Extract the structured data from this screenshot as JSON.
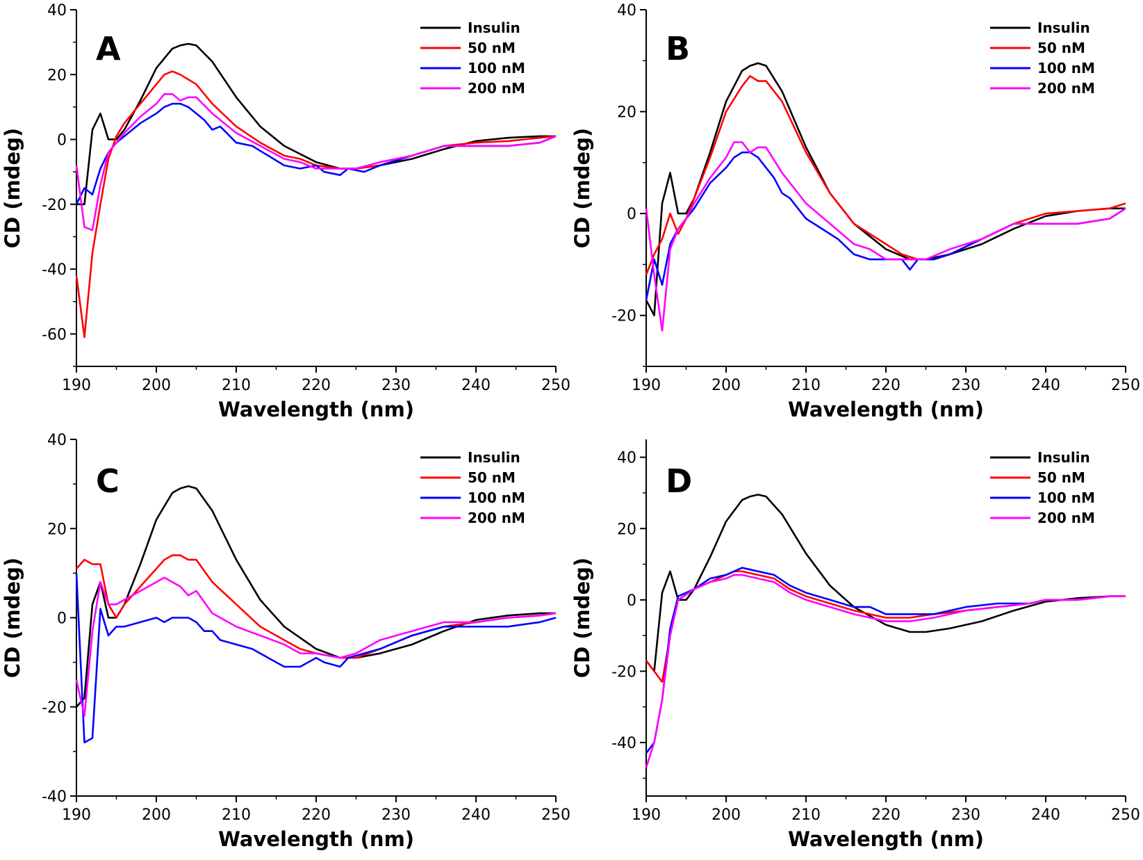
{
  "colors": {
    "Insulin": "#000000",
    "50 nM": "#ff0000",
    "100 nM": "#0000ff",
    "200 nM": "#ff00ff"
  },
  "chart_data": [
    {
      "panel": "A",
      "type": "line",
      "xlabel": "Wavelength (nm)",
      "ylabel": "CD (mdeg)",
      "xlim": [
        190,
        250
      ],
      "ylim": [
        -70,
        40
      ],
      "xticks": [
        190,
        200,
        210,
        220,
        230,
        240,
        250
      ],
      "yticks": [
        -60,
        -40,
        -20,
        0,
        20,
        40
      ],
      "legend_position": "top-right",
      "series": [
        {
          "name": "Insulin",
          "x": [
            190,
            191,
            192,
            193,
            194,
            195,
            196,
            198,
            200,
            202,
            203,
            204,
            205,
            207,
            210,
            213,
            216,
            220,
            223,
            225,
            228,
            232,
            236,
            240,
            244,
            248,
            250
          ],
          "y": [
            -20,
            -20,
            3,
            8,
            0,
            0,
            3,
            12,
            22,
            28,
            29,
            29.5,
            29,
            24,
            13,
            4,
            -2,
            -7,
            -9,
            -9,
            -8,
            -6,
            -3,
            -0.5,
            0.5,
            1,
            1
          ]
        },
        {
          "name": "50 nM",
          "x": [
            190,
            191,
            192,
            193,
            194,
            195,
            196,
            197,
            198,
            200,
            201,
            202,
            203,
            205,
            207,
            210,
            213,
            216,
            218,
            220,
            223,
            225,
            228,
            232,
            236,
            240,
            244,
            248,
            250
          ],
          "y": [
            -42,
            -61,
            -35,
            -20,
            -6,
            1,
            5,
            8,
            11,
            17,
            20,
            21,
            20,
            17,
            11,
            4,
            -1,
            -5,
            -6,
            -8,
            -9,
            -9,
            -8,
            -5,
            -2,
            -1,
            -0.5,
            0.5,
            1
          ]
        },
        {
          "name": "100 nM",
          "x": [
            190,
            191,
            192,
            193,
            194,
            195,
            196,
            198,
            200,
            201,
            202,
            203,
            204,
            205,
            206,
            207,
            208,
            210,
            212,
            214,
            216,
            218,
            220,
            221,
            223,
            224,
            226,
            228,
            232,
            236,
            240,
            244,
            248,
            250
          ],
          "y": [
            -20,
            -15,
            -17,
            -9,
            -4,
            -1,
            1,
            5,
            8,
            10,
            11,
            11,
            10,
            8,
            6,
            3,
            4,
            -1,
            -2,
            -5,
            -8,
            -9,
            -8,
            -10,
            -11,
            -9,
            -10,
            -8,
            -5,
            -2,
            -2,
            -2,
            -1,
            1
          ]
        },
        {
          "name": "200 nM",
          "x": [
            190,
            191,
            192,
            193,
            194,
            195,
            196,
            198,
            200,
            201,
            202,
            203,
            204,
            205,
            207,
            210,
            213,
            216,
            218,
            220,
            223,
            225,
            228,
            232,
            236,
            240,
            244,
            248,
            250
          ],
          "y": [
            -8,
            -27,
            -28,
            -14,
            -4,
            -1,
            2,
            7,
            11,
            14,
            14,
            12,
            13,
            13,
            8,
            2,
            -2,
            -6,
            -7,
            -9,
            -9,
            -9,
            -7,
            -5,
            -2,
            -2,
            -2,
            -1,
            1
          ]
        }
      ]
    },
    {
      "panel": "B",
      "type": "line",
      "xlabel": "Wavelength (nm)",
      "ylabel": "CD (mdeg)",
      "xlim": [
        190,
        250
      ],
      "ylim": [
        -30,
        40
      ],
      "xticks": [
        190,
        200,
        210,
        220,
        230,
        240,
        250
      ],
      "yticks": [
        -20,
        0,
        20,
        40
      ],
      "legend_position": "top-right",
      "series": [
        {
          "name": "Insulin",
          "x": [
            190,
            191,
            192,
            193,
            194,
            195,
            196,
            198,
            200,
            202,
            203,
            204,
            205,
            207,
            210,
            213,
            216,
            220,
            223,
            225,
            228,
            232,
            236,
            240,
            244,
            248,
            250
          ],
          "y": [
            -17,
            -20,
            2,
            8,
            0,
            0,
            3,
            12,
            22,
            28,
            29,
            29.5,
            29,
            24,
            13,
            4,
            -2,
            -7,
            -9,
            -9,
            -8,
            -6,
            -3,
            -0.5,
            0.5,
            1,
            1
          ]
        },
        {
          "name": "50 nM",
          "x": [
            190,
            191,
            192,
            193,
            194,
            195,
            196,
            198,
            200,
            202,
            203,
            204,
            205,
            207,
            210,
            213,
            216,
            218,
            220,
            222,
            224,
            226,
            228,
            232,
            236,
            240,
            244,
            248,
            250
          ],
          "y": [
            -12,
            -8,
            -5,
            0,
            -4,
            -1,
            3,
            11,
            20,
            25,
            27,
            26,
            26,
            22,
            12,
            4,
            -2,
            -4,
            -6,
            -8,
            -9,
            -9,
            -8,
            -5,
            -2,
            0,
            0.5,
            1,
            2
          ]
        },
        {
          "name": "100 nM",
          "x": [
            190,
            191,
            192,
            193,
            194,
            195,
            196,
            198,
            200,
            201,
            202,
            203,
            204,
            205,
            206,
            207,
            208,
            210,
            212,
            214,
            216,
            218,
            220,
            222,
            223,
            224,
            226,
            228,
            232,
            236,
            240,
            244,
            248,
            250
          ],
          "y": [
            -17,
            -9,
            -14,
            -6,
            -3,
            -1,
            1,
            6,
            9,
            11,
            12,
            12,
            11,
            9,
            7,
            4,
            3,
            -1,
            -3,
            -5,
            -8,
            -9,
            -9,
            -9,
            -11,
            -9,
            -9,
            -8,
            -5,
            -2,
            -2,
            -2,
            -1,
            1
          ]
        },
        {
          "name": "200 nM",
          "x": [
            190,
            191,
            192,
            193,
            194,
            195,
            196,
            198,
            200,
            201,
            202,
            203,
            204,
            205,
            207,
            210,
            213,
            216,
            218,
            220,
            223,
            225,
            228,
            232,
            236,
            240,
            244,
            248,
            250
          ],
          "y": [
            1,
            -12,
            -23,
            -7,
            -3,
            -1,
            2,
            7,
            11,
            14,
            14,
            12,
            13,
            13,
            8,
            2,
            -2,
            -6,
            -7,
            -9,
            -9,
            -9,
            -7,
            -5,
            -2,
            -2,
            -2,
            -1,
            1
          ]
        }
      ]
    },
    {
      "panel": "C",
      "type": "line",
      "xlabel": "Wavelength (nm)",
      "ylabel": "CD (mdeg)",
      "xlim": [
        190,
        250
      ],
      "ylim": [
        -40,
        40
      ],
      "xticks": [
        190,
        200,
        210,
        220,
        230,
        240,
        250
      ],
      "yticks": [
        -40,
        -20,
        0,
        20,
        40
      ],
      "legend_position": "top-right",
      "series": [
        {
          "name": "Insulin",
          "x": [
            190,
            191,
            192,
            193,
            194,
            195,
            196,
            198,
            200,
            202,
            203,
            204,
            205,
            207,
            210,
            213,
            216,
            220,
            223,
            225,
            228,
            232,
            236,
            240,
            244,
            248,
            250
          ],
          "y": [
            -20,
            -18,
            3,
            8,
            0,
            0,
            3,
            12,
            22,
            28,
            29,
            29.5,
            29,
            24,
            13,
            4,
            -2,
            -7,
            -9,
            -9,
            -8,
            -6,
            -3,
            -0.5,
            0.5,
            1,
            1
          ]
        },
        {
          "name": "50 nM",
          "x": [
            190,
            191,
            192,
            193,
            194,
            195,
            196,
            198,
            200,
            201,
            202,
            203,
            204,
            205,
            207,
            210,
            213,
            216,
            218,
            220,
            223,
            225,
            228,
            232,
            236,
            240,
            244,
            248,
            250
          ],
          "y": [
            11,
            13,
            12,
            12,
            3,
            0,
            3,
            7,
            11,
            13,
            14,
            14,
            13,
            13,
            8,
            3,
            -2,
            -5,
            -7,
            -8,
            -9,
            -9,
            -7,
            -4,
            -2,
            -1,
            0,
            0.5,
            1
          ]
        },
        {
          "name": "100 nM",
          "x": [
            190,
            191,
            192,
            193,
            194,
            195,
            196,
            198,
            200,
            201,
            202,
            203,
            204,
            205,
            206,
            207,
            208,
            210,
            212,
            214,
            216,
            218,
            220,
            221,
            223,
            224,
            226,
            228,
            232,
            236,
            240,
            244,
            248,
            250
          ],
          "y": [
            10,
            -28,
            -27,
            2,
            -4,
            -2,
            -2,
            -1,
            0,
            -1,
            0,
            0,
            0,
            -1,
            -3,
            -3,
            -5,
            -6,
            -7,
            -9,
            -11,
            -11,
            -9,
            -10,
            -11,
            -9,
            -8,
            -7,
            -4,
            -2,
            -2,
            -2,
            -1,
            0
          ]
        },
        {
          "name": "200 nM",
          "x": [
            190,
            191,
            192,
            193,
            194,
            195,
            196,
            198,
            200,
            201,
            202,
            203,
            204,
            205,
            207,
            210,
            213,
            216,
            218,
            220,
            223,
            225,
            228,
            232,
            236,
            240,
            244,
            248,
            250
          ],
          "y": [
            -14,
            -22,
            -3,
            8,
            3,
            3,
            4,
            6,
            8,
            9,
            8,
            7,
            5,
            6,
            1,
            -2,
            -4,
            -6,
            -8,
            -8,
            -9,
            -8,
            -5,
            -3,
            -1,
            -1,
            0,
            0.5,
            1
          ]
        }
      ]
    },
    {
      "panel": "D",
      "type": "line",
      "xlabel": "Wavelength (nm)",
      "ylabel": "CD (mdeg)",
      "xlim": [
        190,
        250
      ],
      "ylim": [
        -55,
        45
      ],
      "xticks": [
        190,
        200,
        210,
        220,
        230,
        240,
        250
      ],
      "yticks": [
        -40,
        -20,
        0,
        20,
        40
      ],
      "legend_position": "top-right",
      "series": [
        {
          "name": "Insulin",
          "x": [
            190,
            191,
            192,
            193,
            194,
            195,
            196,
            198,
            200,
            202,
            203,
            204,
            205,
            207,
            210,
            213,
            216,
            220,
            223,
            225,
            228,
            232,
            236,
            240,
            244,
            248,
            250
          ],
          "y": [
            -17,
            -20,
            2,
            8,
            0,
            0,
            3,
            12,
            22,
            28,
            29,
            29.5,
            29,
            24,
            13,
            4,
            -2,
            -7,
            -9,
            -9,
            -8,
            -6,
            -3,
            -0.5,
            0.5,
            1,
            1
          ]
        },
        {
          "name": "50 nM",
          "x": [
            190,
            191,
            192,
            193,
            194,
            196,
            198,
            200,
            201,
            202,
            204,
            206,
            208,
            210,
            213,
            216,
            218,
            220,
            223,
            226,
            230,
            234,
            238,
            240,
            244,
            248,
            250
          ],
          "y": [
            -17,
            -20,
            -23,
            -10,
            0,
            3,
            5,
            7,
            8,
            8,
            7,
            6,
            3,
            1,
            -1,
            -3,
            -4,
            -5,
            -5,
            -4,
            -3,
            -2,
            -1,
            0,
            0,
            1,
            1
          ]
        },
        {
          "name": "100 nM",
          "x": [
            190,
            191,
            192,
            193,
            194,
            196,
            198,
            200,
            201,
            202,
            204,
            206,
            208,
            210,
            213,
            216,
            218,
            220,
            223,
            226,
            230,
            234,
            238,
            240,
            244,
            248,
            250
          ],
          "y": [
            -43,
            -40,
            -28,
            -8,
            1,
            3,
            6,
            7,
            8,
            9,
            8,
            7,
            4,
            2,
            0,
            -2,
            -2,
            -4,
            -4,
            -4,
            -2,
            -1,
            -1,
            0,
            0,
            1,
            1
          ]
        },
        {
          "name": "200 nM",
          "x": [
            190,
            191,
            192,
            193,
            194,
            196,
            198,
            200,
            201,
            202,
            204,
            206,
            208,
            210,
            213,
            216,
            218,
            220,
            223,
            226,
            230,
            234,
            238,
            240,
            244,
            248,
            250
          ],
          "y": [
            -47,
            -40,
            -28,
            -10,
            0,
            3,
            5,
            6,
            7,
            7,
            6,
            5,
            2,
            0,
            -2,
            -4,
            -5,
            -6,
            -6,
            -5,
            -3,
            -2,
            -1,
            0,
            0,
            1,
            1
          ]
        }
      ]
    }
  ]
}
